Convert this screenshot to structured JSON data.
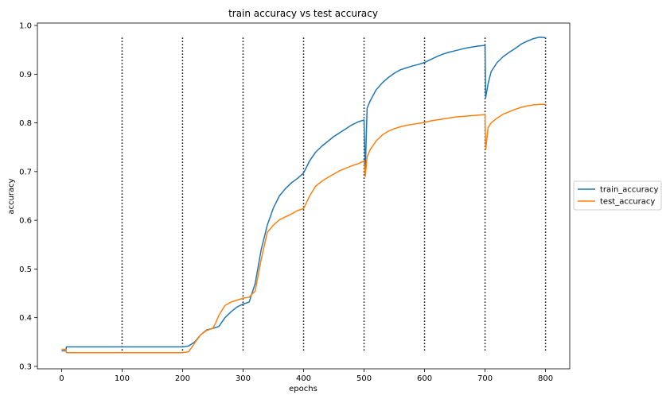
{
  "chart_data": {
    "type": "line",
    "title": "train accuracy vs test accuracy",
    "xlabel": "epochs",
    "ylabel": "accuracy",
    "xlim": [
      -40,
      840
    ],
    "ylim": [
      0.295,
      1.005
    ],
    "xticks": [
      0,
      100,
      200,
      300,
      400,
      500,
      600,
      700,
      800
    ],
    "yticks": [
      0.3,
      0.4,
      0.5,
      0.6,
      0.7,
      0.8,
      0.9,
      1.0
    ],
    "ytick_labels": [
      "0.3",
      "0.4",
      "0.5",
      "0.6",
      "0.7",
      "0.8",
      "0.9",
      "1.0"
    ],
    "vertical_markers": {
      "x": [
        100,
        200,
        300,
        400,
        500,
        600,
        700,
        800
      ],
      "y_range": [
        0.33,
        0.975
      ],
      "style": "dotted",
      "color": "#000000"
    },
    "legend": {
      "placement": "outside-right"
    },
    "series": [
      {
        "name": "train_accuracy",
        "color": "#1f77b4",
        "points": [
          [
            0,
            0.332
          ],
          [
            7,
            0.332
          ],
          [
            8,
            0.34
          ],
          [
            50,
            0.34
          ],
          [
            100,
            0.34
          ],
          [
            150,
            0.34
          ],
          [
            200,
            0.34
          ],
          [
            210,
            0.342
          ],
          [
            220,
            0.35
          ],
          [
            230,
            0.365
          ],
          [
            240,
            0.375
          ],
          [
            250,
            0.378
          ],
          [
            260,
            0.382
          ],
          [
            270,
            0.4
          ],
          [
            280,
            0.412
          ],
          [
            290,
            0.422
          ],
          [
            300,
            0.428
          ],
          [
            310,
            0.432
          ],
          [
            320,
            0.47
          ],
          [
            330,
            0.54
          ],
          [
            340,
            0.59
          ],
          [
            350,
            0.625
          ],
          [
            360,
            0.65
          ],
          [
            370,
            0.665
          ],
          [
            380,
            0.677
          ],
          [
            390,
            0.686
          ],
          [
            400,
            0.697
          ],
          [
            410,
            0.722
          ],
          [
            420,
            0.74
          ],
          [
            430,
            0.752
          ],
          [
            440,
            0.762
          ],
          [
            450,
            0.772
          ],
          [
            460,
            0.78
          ],
          [
            470,
            0.788
          ],
          [
            480,
            0.796
          ],
          [
            490,
            0.802
          ],
          [
            500,
            0.806
          ],
          [
            502,
            0.7
          ],
          [
            505,
            0.83
          ],
          [
            510,
            0.845
          ],
          [
            520,
            0.868
          ],
          [
            530,
            0.882
          ],
          [
            540,
            0.893
          ],
          [
            550,
            0.902
          ],
          [
            560,
            0.909
          ],
          [
            570,
            0.913
          ],
          [
            580,
            0.917
          ],
          [
            590,
            0.92
          ],
          [
            600,
            0.924
          ],
          [
            610,
            0.93
          ],
          [
            620,
            0.936
          ],
          [
            630,
            0.941
          ],
          [
            640,
            0.945
          ],
          [
            650,
            0.948
          ],
          [
            660,
            0.951
          ],
          [
            670,
            0.954
          ],
          [
            680,
            0.956
          ],
          [
            690,
            0.958
          ],
          [
            700,
            0.959
          ],
          [
            701,
            0.852
          ],
          [
            705,
            0.88
          ],
          [
            710,
            0.905
          ],
          [
            720,
            0.924
          ],
          [
            730,
            0.936
          ],
          [
            740,
            0.945
          ],
          [
            750,
            0.953
          ],
          [
            760,
            0.962
          ],
          [
            770,
            0.968
          ],
          [
            780,
            0.973
          ],
          [
            790,
            0.976
          ],
          [
            800,
            0.975
          ]
        ]
      },
      {
        "name": "test_accuracy",
        "color": "#ff7f0e",
        "points": [
          [
            0,
            0.335
          ],
          [
            7,
            0.335
          ],
          [
            8,
            0.328
          ],
          [
            50,
            0.328
          ],
          [
            100,
            0.328
          ],
          [
            150,
            0.328
          ],
          [
            200,
            0.328
          ],
          [
            210,
            0.33
          ],
          [
            220,
            0.348
          ],
          [
            230,
            0.365
          ],
          [
            240,
            0.374
          ],
          [
            250,
            0.378
          ],
          [
            255,
            0.39
          ],
          [
            260,
            0.405
          ],
          [
            270,
            0.425
          ],
          [
            280,
            0.432
          ],
          [
            290,
            0.436
          ],
          [
            300,
            0.44
          ],
          [
            310,
            0.442
          ],
          [
            320,
            0.455
          ],
          [
            330,
            0.52
          ],
          [
            340,
            0.575
          ],
          [
            350,
            0.59
          ],
          [
            360,
            0.601
          ],
          [
            370,
            0.607
          ],
          [
            380,
            0.613
          ],
          [
            390,
            0.62
          ],
          [
            400,
            0.624
          ],
          [
            410,
            0.65
          ],
          [
            420,
            0.67
          ],
          [
            430,
            0.68
          ],
          [
            440,
            0.688
          ],
          [
            450,
            0.695
          ],
          [
            460,
            0.702
          ],
          [
            470,
            0.707
          ],
          [
            480,
            0.712
          ],
          [
            490,
            0.716
          ],
          [
            500,
            0.722
          ],
          [
            502,
            0.69
          ],
          [
            505,
            0.73
          ],
          [
            510,
            0.745
          ],
          [
            520,
            0.763
          ],
          [
            530,
            0.775
          ],
          [
            540,
            0.783
          ],
          [
            550,
            0.788
          ],
          [
            560,
            0.792
          ],
          [
            570,
            0.795
          ],
          [
            580,
            0.797
          ],
          [
            590,
            0.799
          ],
          [
            600,
            0.801
          ],
          [
            610,
            0.804
          ],
          [
            620,
            0.806
          ],
          [
            630,
            0.808
          ],
          [
            640,
            0.81
          ],
          [
            650,
            0.812
          ],
          [
            660,
            0.813
          ],
          [
            670,
            0.814
          ],
          [
            680,
            0.815
          ],
          [
            690,
            0.816
          ],
          [
            700,
            0.817
          ],
          [
            701,
            0.745
          ],
          [
            705,
            0.79
          ],
          [
            710,
            0.8
          ],
          [
            720,
            0.81
          ],
          [
            730,
            0.818
          ],
          [
            740,
            0.823
          ],
          [
            750,
            0.828
          ],
          [
            760,
            0.832
          ],
          [
            770,
            0.835
          ],
          [
            780,
            0.837
          ],
          [
            790,
            0.838
          ],
          [
            800,
            0.838
          ]
        ]
      }
    ]
  }
}
